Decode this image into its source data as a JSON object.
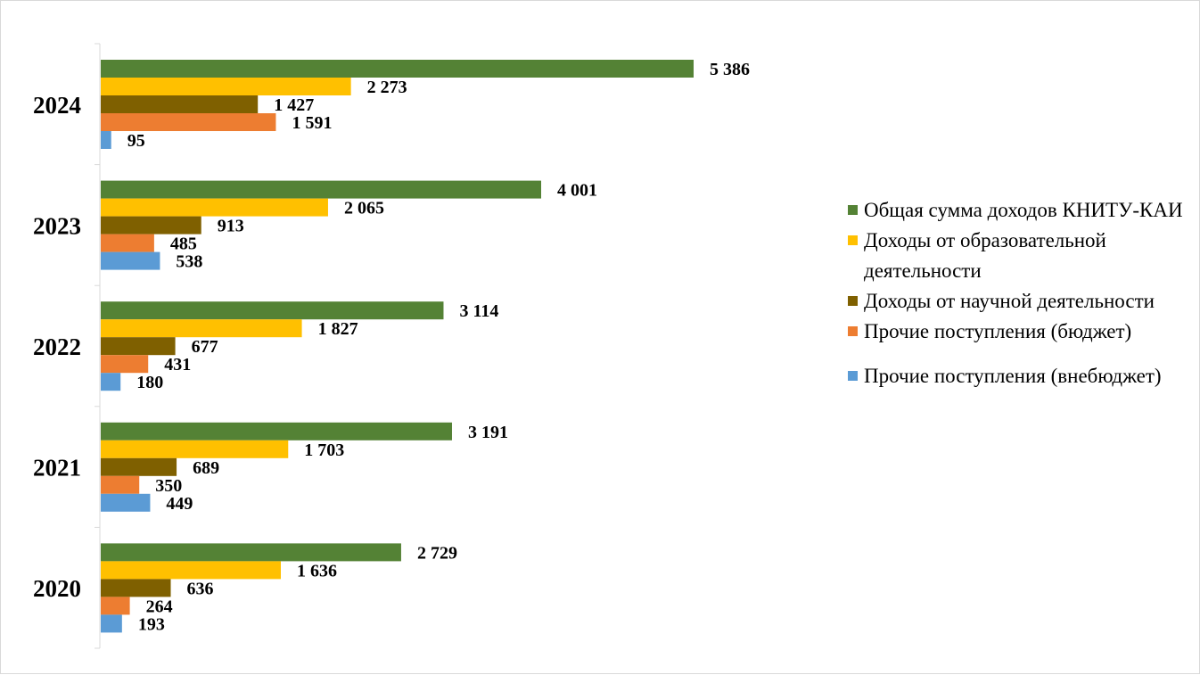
{
  "chart_data": {
    "type": "bar",
    "orientation": "horizontal",
    "categories": [
      "2024",
      "2023",
      "2022",
      "2021",
      "2020"
    ],
    "series": [
      {
        "name": "Общая сумма доходов КНИТУ-КАИ",
        "color": "#548235",
        "values": [
          5386,
          4001,
          3114,
          3191,
          2729
        ],
        "labels": [
          "5 386",
          "4 001",
          "3 114",
          "3 191",
          "2 729"
        ]
      },
      {
        "name": " Доходы от образовательной деятельности",
        "color": "#ffc000",
        "values": [
          2273,
          2065,
          1827,
          1703,
          1636
        ],
        "labels": [
          "2 273",
          "2 065",
          "1 827",
          "1 703",
          "1 636"
        ]
      },
      {
        "name": "Доходы от научной деятельности",
        "color": "#7f6000",
        "values": [
          1427,
          913,
          677,
          689,
          636
        ],
        "labels": [
          "1 427",
          "913",
          "677",
          "689",
          "636"
        ]
      },
      {
        "name": "Прочие поступления (бюджет)",
        "color": "#ed7d31",
        "values": [
          1591,
          485,
          431,
          350,
          264
        ],
        "labels": [
          "1 591",
          "485",
          "431",
          "350",
          "264"
        ]
      },
      {
        "name": " Прочие поступления (внебюджет)",
        "color": "#5b9bd5",
        "values": [
          95,
          538,
          180,
          449,
          193
        ],
        "labels": [
          "95",
          "538",
          "180",
          "449",
          "193"
        ]
      }
    ],
    "xlim": [
      0,
      5400
    ],
    "grid": false,
    "legend_position": "right"
  }
}
